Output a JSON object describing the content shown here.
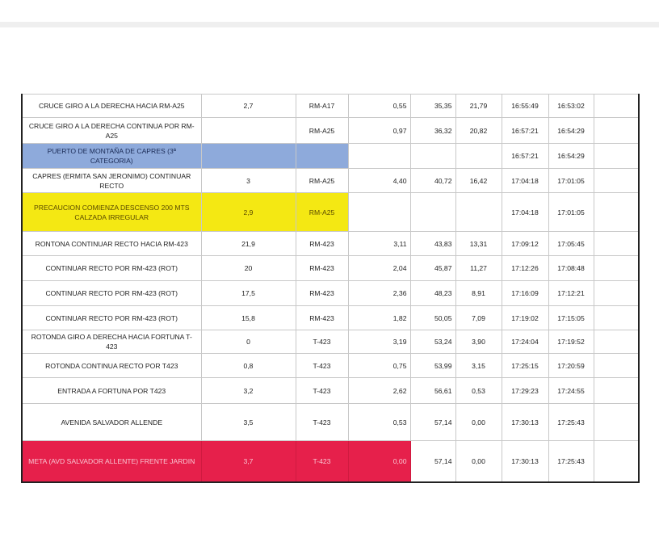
{
  "colors": {
    "header_blue": "#8eaadb",
    "warning_yellow": "#f4e813",
    "finish_red": "#e6204b"
  },
  "rows": [
    {
      "style": "",
      "cells": [
        "CRUCE GIRO A LA DERECHA HACIA RM-A25",
        "2,7",
        "RM-A17",
        "0,55",
        "35,35",
        "21,79",
        "16:55:49",
        "16:53:02",
        ""
      ]
    },
    {
      "style": "",
      "cells": [
        "CRUCE GIRO A LA DERECHA CONTINUA POR RM-A25",
        "",
        "RM-A25",
        "0,97",
        "36,32",
        "20,82",
        "16:57:21",
        "16:54:29",
        ""
      ]
    },
    {
      "style": "blue",
      "cells": [
        "PUERTO DE MONTAÑA DE CAPRES (3ª CATEGORIA)",
        "",
        "",
        "",
        "",
        "",
        "16:57:21",
        "16:54:29",
        ""
      ]
    },
    {
      "style": "",
      "cells": [
        "CAPRES (ERMITA SAN JERONIMO) CONTINUAR RECTO",
        "3",
        "RM-A25",
        "4,40",
        "40,72",
        "16,42",
        "17:04:18",
        "17:01:05",
        ""
      ]
    },
    {
      "style": "yellow",
      "cells": [
        "PRECAUCION COMIENZA DESCENSO 200 MTS CALZADA IRREGULAR",
        "2,9",
        "RM-A25",
        "",
        "",
        "",
        "17:04:18",
        "17:01:05",
        ""
      ]
    },
    {
      "style": "",
      "cells": [
        "RONTONA CONTINUAR RECTO HACIA RM-423",
        "21,9",
        "RM-423",
        "3,11",
        "43,83",
        "13,31",
        "17:09:12",
        "17:05:45",
        ""
      ]
    },
    {
      "style": "",
      "cells": [
        "CONTINUAR RECTO POR RM-423 (ROT)",
        "20",
        "RM-423",
        "2,04",
        "45,87",
        "11,27",
        "17:12:26",
        "17:08:48",
        ""
      ]
    },
    {
      "style": "",
      "cells": [
        "CONTINUAR RECTO POR RM-423 (ROT)",
        "17,5",
        "RM-423",
        "2,36",
        "48,23",
        "8,91",
        "17:16:09",
        "17:12:21",
        ""
      ]
    },
    {
      "style": "",
      "cells": [
        "CONTINUAR RECTO POR RM-423 (ROT)",
        "15,8",
        "RM-423",
        "1,82",
        "50,05",
        "7,09",
        "17:19:02",
        "17:15:05",
        ""
      ]
    },
    {
      "style": "",
      "cells": [
        "ROTONDA GIRO A DERECHA HACIA FORTUNA T-423",
        "0",
        "T-423",
        "3,19",
        "53,24",
        "3,90",
        "17:24:04",
        "17:19:52",
        ""
      ]
    },
    {
      "style": "",
      "cells": [
        "ROTONDA CONTINUA RECTO POR T423",
        "0,8",
        "T-423",
        "0,75",
        "53,99",
        "3,15",
        "17:25:15",
        "17:20:59",
        ""
      ]
    },
    {
      "style": "",
      "cells": [
        "ENTRADA A FORTUNA POR T423",
        "3,2",
        "T-423",
        "2,62",
        "56,61",
        "0,53",
        "17:29:23",
        "17:24:55",
        ""
      ]
    },
    {
      "style": "",
      "cells": [
        "AVENIDA SALVADOR ALLENDE",
        "3,5",
        "T-423",
        "0,53",
        "57,14",
        "0,00",
        "17:30:13",
        "17:25:43",
        ""
      ]
    },
    {
      "style": "red",
      "cells": [
        "META (AVD SALVADOR ALLENTE) FRENTE JARDIN",
        "3,7",
        "T-423",
        "0,00",
        "57,14",
        "0,00",
        "17:30:13",
        "17:25:43",
        ""
      ]
    }
  ]
}
